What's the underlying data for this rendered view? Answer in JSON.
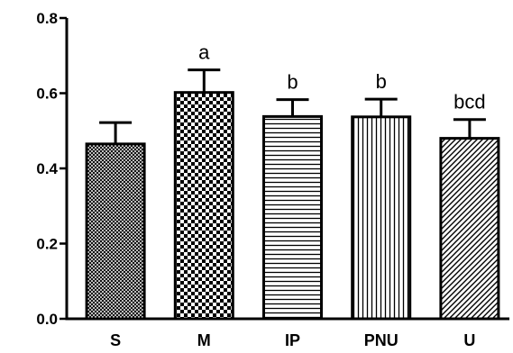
{
  "chart_data": {
    "type": "bar",
    "categories": [
      "S",
      "M",
      "IP",
      "PNU",
      "U"
    ],
    "values": [
      0.465,
      0.602,
      0.538,
      0.537,
      0.48
    ],
    "errors": [
      0.057,
      0.06,
      0.045,
      0.047,
      0.05
    ],
    "annotations": [
      "",
      "a",
      "b",
      "b",
      "bcd"
    ],
    "patterns": [
      "fine-crosshatch",
      "checkerboard",
      "horizontal-lines",
      "vertical-lines",
      "diagonal-lines"
    ],
    "ylim": [
      0,
      0.8
    ],
    "yticks": [
      "0.0",
      "0.2",
      "0.4",
      "0.6",
      "0.8"
    ],
    "title": "",
    "xlabel": "",
    "ylabel": "",
    "grid": false,
    "bar_color": "#000000",
    "background": "#ffffff"
  }
}
